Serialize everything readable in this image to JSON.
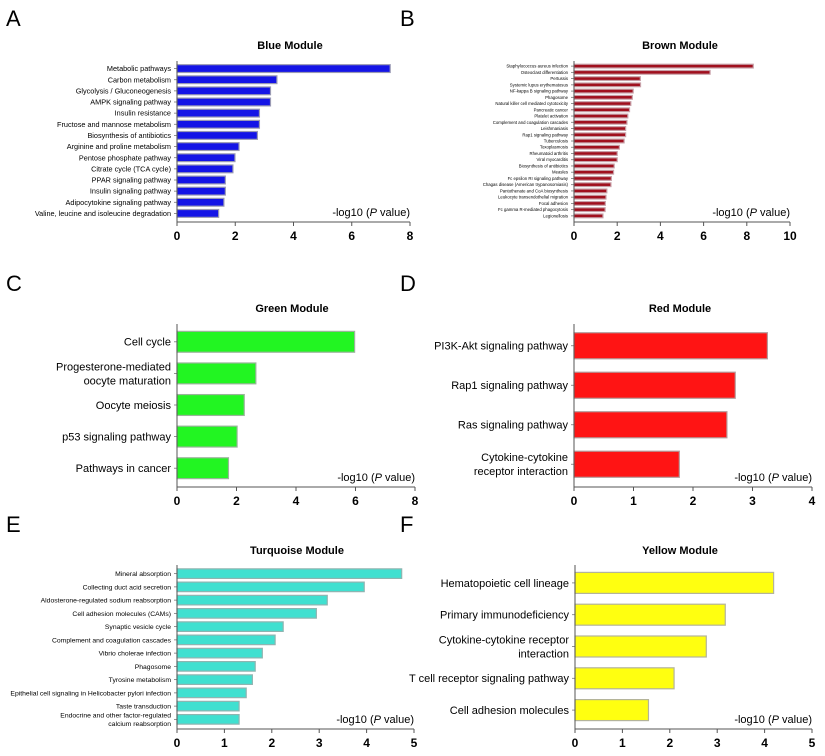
{
  "chart_data": [
    {
      "panel": "A",
      "type": "bar",
      "orientation": "horizontal",
      "title": "Blue Module",
      "xlabel": "-log10 (P value)",
      "xlim": [
        0,
        8
      ],
      "xticks": [
        0,
        2,
        4,
        6,
        8
      ],
      "color": "#1414e6",
      "border": "#9a9ab4",
      "categories": [
        "Metabolic pathways",
        "Carbon metabolism",
        "Glycolysis / Gluconeogenesis",
        "AMPK signaling pathway",
        "Insulin resistance",
        "Fructose and mannose metabolism",
        "Biosynthesis of antibiotics",
        "Arginine and proline metabolism",
        "Pentose phosphate pathway",
        "Citrate cycle (TCA cycle)",
        "PPAR signaling pathway",
        "Insulin signaling pathway",
        "Adipocytokine signaling pathway",
        "Valine, leucine and isoleucine degradation"
      ],
      "values": [
        7.32,
        3.43,
        3.21,
        3.21,
        2.83,
        2.83,
        2.76,
        2.13,
        1.99,
        1.92,
        1.66,
        1.66,
        1.61,
        1.43
      ]
    },
    {
      "panel": "B",
      "type": "bar",
      "orientation": "horizontal",
      "title": "Brown Module",
      "xlabel": "-log10 (P value)",
      "xlim": [
        0,
        10
      ],
      "xticks": [
        0,
        2,
        4,
        6,
        8,
        10
      ],
      "color": "#a0101e",
      "border": "#c8a0a8",
      "categories": [
        "Staphylococcus aureus infection",
        "Osteoclast differentiation",
        "Pertussis",
        "Systemic lupus erythematosus",
        "NF-kappa B signaling pathway",
        "Phagosome",
        "Natural killer cell mediated cytotoxicity",
        "Pancreatic cancer",
        "Platelet activation",
        "Complement and coagulation cascades",
        "Leishmaniasis",
        "Rap1 signaling pathway",
        "Tuberculosis",
        "Toxoplasmosis",
        "Rheumatoid arthritis",
        "Viral myocarditis",
        "Biosynthesis of antibiotics",
        "Measles",
        "Fc epsilon RI signaling pathway",
        "Chagas disease (American trypanosomiasis)",
        "Pantothenate and CoA biosynthesis",
        "Leukocyte transendothelial migration",
        "Focal adhesion",
        "Fc gamma R-mediated phagocytosis",
        "Legionellosis"
      ],
      "values": [
        8.3,
        6.3,
        3.07,
        3.08,
        2.74,
        2.7,
        2.63,
        2.57,
        2.49,
        2.45,
        2.39,
        2.39,
        2.32,
        2.1,
        2.0,
        2.0,
        1.86,
        1.83,
        1.73,
        1.71,
        1.52,
        1.48,
        1.45,
        1.44,
        1.34
      ]
    },
    {
      "panel": "C",
      "type": "bar",
      "orientation": "horizontal",
      "title": "Green Module",
      "xlabel": "-log10 (P value)",
      "xlim": [
        0,
        8
      ],
      "xticks": [
        0,
        2,
        4,
        6,
        8
      ],
      "color": "#22f522",
      "border": "#9ab49a",
      "categories": [
        "Cell cycle",
        "Progesterone-mediated\noocyte maturation",
        "Oocyte meiosis",
        "p53 signaling pathway",
        "Pathways in cancer"
      ],
      "values": [
        5.97,
        2.65,
        2.26,
        2.02,
        1.73
      ]
    },
    {
      "panel": "D",
      "type": "bar",
      "orientation": "horizontal",
      "title": "Red Module",
      "xlabel": "-log10 (P value)",
      "xlim": [
        0,
        4
      ],
      "xticks": [
        0,
        1,
        2,
        3,
        4
      ],
      "color": "#ff1414",
      "border": "#b49a9a",
      "categories": [
        "PI3K-Akt signaling pathway",
        "Rap1 signaling pathway",
        "Ras signaling pathway",
        "Cytokine-cytokine\nreceptor interaction"
      ],
      "values": [
        3.25,
        2.71,
        2.57,
        1.77
      ]
    },
    {
      "panel": "E",
      "type": "bar",
      "orientation": "horizontal",
      "title": "Turquoise Module",
      "xlabel": "-log10 (P value)",
      "xlim": [
        0,
        5
      ],
      "xticks": [
        0,
        1,
        2,
        3,
        4,
        5
      ],
      "color": "#40e0d0",
      "border": "#8fb4b0",
      "categories": [
        "Mineral absorption",
        "Collecting duct acid secretion",
        "Aldosterone-regulated sodium reabsorption",
        "Cell adhesion molecules (CAMs)",
        "Synaptic vesicle cycle",
        "Complement and coagulation cascades",
        "Vibrio cholerae infection",
        "Phagosome",
        "Tyrosine metabolism",
        "Epithelial cell signaling in Helicobacter pylori infection",
        "Taste transduction",
        "Endocrine and other factor-regulated\ncalcium reabsorption"
      ],
      "values": [
        4.74,
        3.95,
        3.17,
        2.94,
        2.24,
        2.07,
        1.8,
        1.65,
        1.59,
        1.46,
        1.31,
        1.31
      ]
    },
    {
      "panel": "F",
      "type": "bar",
      "orientation": "horizontal",
      "title": "Yellow Module",
      "xlabel": "-log10 (P value)",
      "xlim": [
        0,
        5
      ],
      "xticks": [
        0,
        1,
        2,
        3,
        4,
        5
      ],
      "color": "#ffff10",
      "border": "#b4b49a",
      "categories": [
        "Hematopoietic cell lineage",
        "Primary immunodeficiency",
        "Cytokine-cytokine receptor\ninteraction",
        "T cell receptor signaling pathway",
        "Cell adhesion molecules"
      ],
      "values": [
        4.19,
        3.17,
        2.77,
        2.09,
        1.55
      ]
    }
  ]
}
